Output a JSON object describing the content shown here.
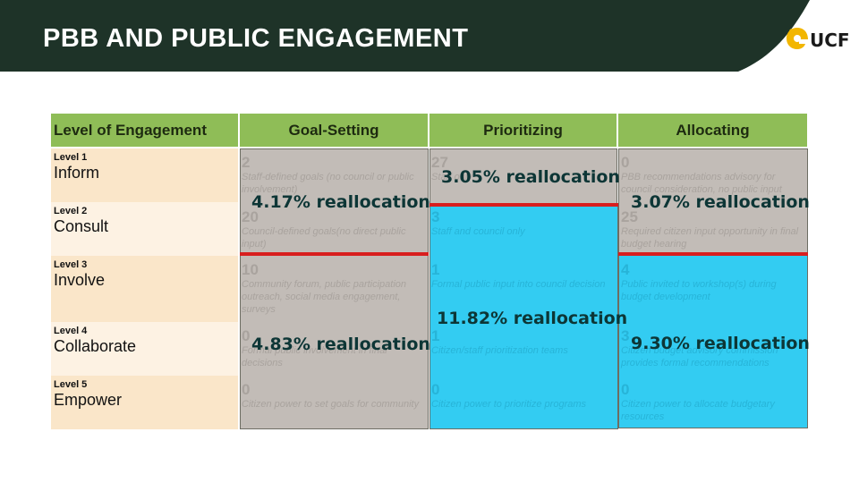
{
  "slide": {
    "title": "PBB AND PUBLIC ENGAGEMENT",
    "logo": {
      "text": "UCF",
      "icon": "pegasus-icon"
    },
    "colors": {
      "header_bg": "#1e3328",
      "table_header": "#8fbd57",
      "gray_box": "#c2bcb7",
      "blue_box": "#33ccf2",
      "divider_red": "#d81e1e",
      "level_light": "#fdf2e3",
      "level_dark": "#fae6c9"
    }
  },
  "table": {
    "headers": [
      "Level of Engagement",
      "Goal-Setting",
      "Prioritizing",
      "Allocating"
    ],
    "levels": [
      {
        "num": "Level 1",
        "name": "Inform"
      },
      {
        "num": "Level 2",
        "name": "Consult"
      },
      {
        "num": "Level 3",
        "name": "Involve"
      },
      {
        "num": "Level 4",
        "name": "Collaborate"
      },
      {
        "num": "Level 5",
        "name": "Empower"
      }
    ],
    "goal_setting": [
      {
        "count": "2",
        "desc": "Staff-defined goals (no council or public involvement)"
      },
      {
        "count": "20",
        "desc": "Council-defined goals(no direct public input)"
      },
      {
        "count": "10",
        "desc": "Community forum, public participation outreach, social media engagement, surveys"
      },
      {
        "count": "0",
        "desc": "Formal public involvement in final decisions"
      },
      {
        "count": "0",
        "desc": "Citizen power to set goals for community"
      }
    ],
    "prioritizing": [
      {
        "count": "27",
        "desc": "Staff only"
      },
      {
        "count": "3",
        "desc": "Staff and council only"
      },
      {
        "count": "1",
        "desc": "Formal public input into council decision"
      },
      {
        "count": "1",
        "desc": "Citizen/staff prioritization teams"
      },
      {
        "count": "0",
        "desc": "Citizen power to prioritize programs"
      }
    ],
    "allocating": [
      {
        "count": "0",
        "desc": "PBB recommendations advisory for council consideration, no public input"
      },
      {
        "count": "25",
        "desc": "Required citizen input opportunity in final budget hearing"
      },
      {
        "count": "4",
        "desc": "Public invited to workshop(s) during budget development"
      },
      {
        "count": "3",
        "desc": "Citizen budget advisory commission provides formal recommendations"
      },
      {
        "count": "0",
        "desc": "Citizen power to allocate budgetary resources"
      }
    ]
  },
  "reallocations": {
    "goal_upper": "4.17% reallocation",
    "goal_lower": "4.83% reallocation",
    "prior_upper": "3.05% reallocation",
    "prior_lower": "11.82% reallocation",
    "alloc_upper": "3.07% reallocation",
    "alloc_lower": "9.30% reallocation"
  }
}
